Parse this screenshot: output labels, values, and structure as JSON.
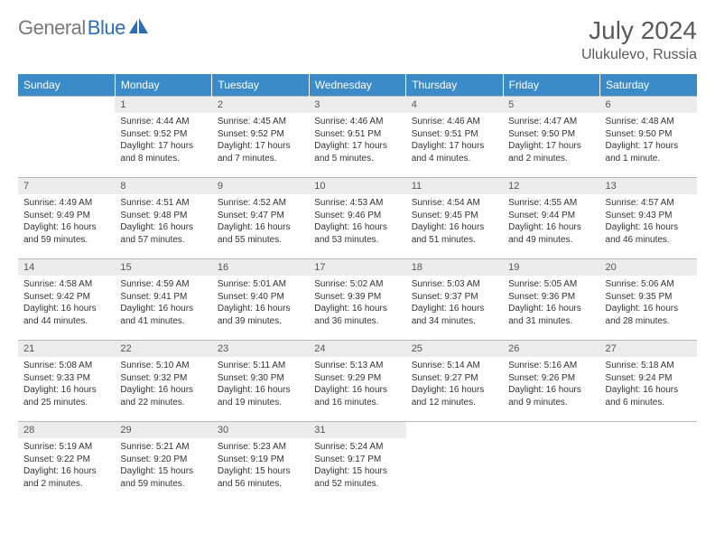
{
  "brand": {
    "part1": "General",
    "part2": "Blue"
  },
  "title": "July 2024",
  "location": "Ulukulevo, Russia",
  "colors": {
    "header_bg": "#3b8bc9",
    "header_text": "#ffffff",
    "daynum_bg": "#ececec",
    "text": "#333333",
    "brand_gray": "#7a7a7a",
    "brand_blue": "#2d6fb5",
    "grid_border": "#b8b8b8"
  },
  "weekdays": [
    "Sunday",
    "Monday",
    "Tuesday",
    "Wednesday",
    "Thursday",
    "Friday",
    "Saturday"
  ],
  "weeks": [
    [
      {
        "n": "",
        "sr": "",
        "ss": "",
        "dl": ""
      },
      {
        "n": "1",
        "sr": "Sunrise: 4:44 AM",
        "ss": "Sunset: 9:52 PM",
        "dl": "Daylight: 17 hours and 8 minutes."
      },
      {
        "n": "2",
        "sr": "Sunrise: 4:45 AM",
        "ss": "Sunset: 9:52 PM",
        "dl": "Daylight: 17 hours and 7 minutes."
      },
      {
        "n": "3",
        "sr": "Sunrise: 4:46 AM",
        "ss": "Sunset: 9:51 PM",
        "dl": "Daylight: 17 hours and 5 minutes."
      },
      {
        "n": "4",
        "sr": "Sunrise: 4:46 AM",
        "ss": "Sunset: 9:51 PM",
        "dl": "Daylight: 17 hours and 4 minutes."
      },
      {
        "n": "5",
        "sr": "Sunrise: 4:47 AM",
        "ss": "Sunset: 9:50 PM",
        "dl": "Daylight: 17 hours and 2 minutes."
      },
      {
        "n": "6",
        "sr": "Sunrise: 4:48 AM",
        "ss": "Sunset: 9:50 PM",
        "dl": "Daylight: 17 hours and 1 minute."
      }
    ],
    [
      {
        "n": "7",
        "sr": "Sunrise: 4:49 AM",
        "ss": "Sunset: 9:49 PM",
        "dl": "Daylight: 16 hours and 59 minutes."
      },
      {
        "n": "8",
        "sr": "Sunrise: 4:51 AM",
        "ss": "Sunset: 9:48 PM",
        "dl": "Daylight: 16 hours and 57 minutes."
      },
      {
        "n": "9",
        "sr": "Sunrise: 4:52 AM",
        "ss": "Sunset: 9:47 PM",
        "dl": "Daylight: 16 hours and 55 minutes."
      },
      {
        "n": "10",
        "sr": "Sunrise: 4:53 AM",
        "ss": "Sunset: 9:46 PM",
        "dl": "Daylight: 16 hours and 53 minutes."
      },
      {
        "n": "11",
        "sr": "Sunrise: 4:54 AM",
        "ss": "Sunset: 9:45 PM",
        "dl": "Daylight: 16 hours and 51 minutes."
      },
      {
        "n": "12",
        "sr": "Sunrise: 4:55 AM",
        "ss": "Sunset: 9:44 PM",
        "dl": "Daylight: 16 hours and 49 minutes."
      },
      {
        "n": "13",
        "sr": "Sunrise: 4:57 AM",
        "ss": "Sunset: 9:43 PM",
        "dl": "Daylight: 16 hours and 46 minutes."
      }
    ],
    [
      {
        "n": "14",
        "sr": "Sunrise: 4:58 AM",
        "ss": "Sunset: 9:42 PM",
        "dl": "Daylight: 16 hours and 44 minutes."
      },
      {
        "n": "15",
        "sr": "Sunrise: 4:59 AM",
        "ss": "Sunset: 9:41 PM",
        "dl": "Daylight: 16 hours and 41 minutes."
      },
      {
        "n": "16",
        "sr": "Sunrise: 5:01 AM",
        "ss": "Sunset: 9:40 PM",
        "dl": "Daylight: 16 hours and 39 minutes."
      },
      {
        "n": "17",
        "sr": "Sunrise: 5:02 AM",
        "ss": "Sunset: 9:39 PM",
        "dl": "Daylight: 16 hours and 36 minutes."
      },
      {
        "n": "18",
        "sr": "Sunrise: 5:03 AM",
        "ss": "Sunset: 9:37 PM",
        "dl": "Daylight: 16 hours and 34 minutes."
      },
      {
        "n": "19",
        "sr": "Sunrise: 5:05 AM",
        "ss": "Sunset: 9:36 PM",
        "dl": "Daylight: 16 hours and 31 minutes."
      },
      {
        "n": "20",
        "sr": "Sunrise: 5:06 AM",
        "ss": "Sunset: 9:35 PM",
        "dl": "Daylight: 16 hours and 28 minutes."
      }
    ],
    [
      {
        "n": "21",
        "sr": "Sunrise: 5:08 AM",
        "ss": "Sunset: 9:33 PM",
        "dl": "Daylight: 16 hours and 25 minutes."
      },
      {
        "n": "22",
        "sr": "Sunrise: 5:10 AM",
        "ss": "Sunset: 9:32 PM",
        "dl": "Daylight: 16 hours and 22 minutes."
      },
      {
        "n": "23",
        "sr": "Sunrise: 5:11 AM",
        "ss": "Sunset: 9:30 PM",
        "dl": "Daylight: 16 hours and 19 minutes."
      },
      {
        "n": "24",
        "sr": "Sunrise: 5:13 AM",
        "ss": "Sunset: 9:29 PM",
        "dl": "Daylight: 16 hours and 16 minutes."
      },
      {
        "n": "25",
        "sr": "Sunrise: 5:14 AM",
        "ss": "Sunset: 9:27 PM",
        "dl": "Daylight: 16 hours and 12 minutes."
      },
      {
        "n": "26",
        "sr": "Sunrise: 5:16 AM",
        "ss": "Sunset: 9:26 PM",
        "dl": "Daylight: 16 hours and 9 minutes."
      },
      {
        "n": "27",
        "sr": "Sunrise: 5:18 AM",
        "ss": "Sunset: 9:24 PM",
        "dl": "Daylight: 16 hours and 6 minutes."
      }
    ],
    [
      {
        "n": "28",
        "sr": "Sunrise: 5:19 AM",
        "ss": "Sunset: 9:22 PM",
        "dl": "Daylight: 16 hours and 2 minutes."
      },
      {
        "n": "29",
        "sr": "Sunrise: 5:21 AM",
        "ss": "Sunset: 9:20 PM",
        "dl": "Daylight: 15 hours and 59 minutes."
      },
      {
        "n": "30",
        "sr": "Sunrise: 5:23 AM",
        "ss": "Sunset: 9:19 PM",
        "dl": "Daylight: 15 hours and 56 minutes."
      },
      {
        "n": "31",
        "sr": "Sunrise: 5:24 AM",
        "ss": "Sunset: 9:17 PM",
        "dl": "Daylight: 15 hours and 52 minutes."
      },
      {
        "n": "",
        "sr": "",
        "ss": "",
        "dl": ""
      },
      {
        "n": "",
        "sr": "",
        "ss": "",
        "dl": ""
      },
      {
        "n": "",
        "sr": "",
        "ss": "",
        "dl": ""
      }
    ]
  ]
}
